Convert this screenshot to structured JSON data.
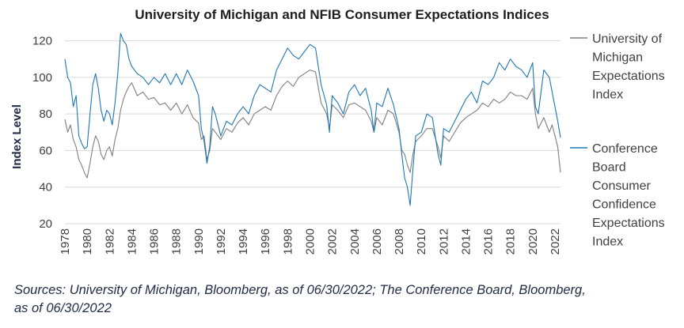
{
  "chart_data": {
    "type": "line",
    "title": "University of Michigan and NFIB Consumer  Expectations  Indices",
    "xlabel": "",
    "ylabel": "Index Level",
    "xlim": [
      1978,
      2022.5
    ],
    "ylim": [
      20,
      125
    ],
    "yticks": [
      20,
      40,
      60,
      80,
      100,
      120
    ],
    "xticks": [
      "1978",
      "1980",
      "1982",
      "1984",
      "1986",
      "1988",
      "1990",
      "1992",
      "1994",
      "1996",
      "1998",
      "2000",
      "2002",
      "2004",
      "2006",
      "2008",
      "2010",
      "2012",
      "2014",
      "2016",
      "2018",
      "2020",
      "2022"
    ],
    "legend_position": "right",
    "series": [
      {
        "name": "University of Michigan Expectations Index",
        "legend_lines": [
          "University of",
          "Michigan",
          "Expectations",
          "Index"
        ],
        "color": "#7f7f7f",
        "x": [
          1978.0,
          1978.25,
          1978.5,
          1978.75,
          1979.0,
          1979.25,
          1979.5,
          1979.75,
          1980.0,
          1980.25,
          1980.5,
          1980.75,
          1981.0,
          1981.25,
          1981.5,
          1981.75,
          1982.0,
          1982.25,
          1982.5,
          1982.75,
          1983.0,
          1983.25,
          1983.5,
          1983.75,
          1984.0,
          1984.5,
          1985.0,
          1985.5,
          1986.0,
          1986.5,
          1987.0,
          1987.5,
          1988.0,
          1988.5,
          1989.0,
          1989.5,
          1990.0,
          1990.25,
          1990.5,
          1990.75,
          1991.0,
          1991.25,
          1991.5,
          1992.0,
          1992.5,
          1993.0,
          1993.5,
          1994.0,
          1994.5,
          1995.0,
          1995.5,
          1996.0,
          1996.5,
          1997.0,
          1997.5,
          1998.0,
          1998.5,
          1999.0,
          1999.5,
          2000.0,
          2000.5,
          2001.0,
          2001.5,
          2001.75,
          2002.0,
          2002.5,
          2003.0,
          2003.5,
          2004.0,
          2004.5,
          2005.0,
          2005.5,
          2005.75,
          2006.0,
          2006.5,
          2007.0,
          2007.5,
          2008.0,
          2008.25,
          2008.5,
          2008.75,
          2009.0,
          2009.25,
          2009.5,
          2010.0,
          2010.5,
          2011.0,
          2011.5,
          2011.75,
          2012.0,
          2012.5,
          2013.0,
          2013.5,
          2014.0,
          2014.5,
          2015.0,
          2015.5,
          2016.0,
          2016.5,
          2017.0,
          2017.5,
          2018.0,
          2018.5,
          2019.0,
          2019.5,
          2020.0,
          2020.25,
          2020.5,
          2021.0,
          2021.5,
          2021.75,
          2022.0,
          2022.25,
          2022.5
        ],
        "values": [
          77,
          70,
          74,
          66,
          62,
          55,
          52,
          48,
          45,
          53,
          62,
          68,
          65,
          58,
          55,
          60,
          62,
          57,
          66,
          72,
          82,
          88,
          92,
          95,
          97,
          90,
          92,
          88,
          89,
          85,
          86,
          82,
          86,
          80,
          85,
          78,
          75,
          66,
          68,
          55,
          60,
          72,
          70,
          66,
          72,
          70,
          75,
          78,
          74,
          80,
          82,
          84,
          82,
          90,
          95,
          98,
          95,
          100,
          102,
          104,
          103,
          86,
          80,
          72,
          85,
          82,
          78,
          85,
          86,
          84,
          82,
          76,
          70,
          78,
          74,
          82,
          80,
          70,
          60,
          58,
          52,
          48,
          58,
          65,
          68,
          72,
          72,
          62,
          56,
          68,
          65,
          70,
          75,
          78,
          80,
          82,
          86,
          84,
          88,
          86,
          88,
          92,
          90,
          90,
          88,
          94,
          80,
          72,
          78,
          70,
          74,
          68,
          62,
          48
        ]
      },
      {
        "name": "Conference Board Consumer Confidence Expectations Index",
        "legend_lines": [
          "Conference",
          "Board",
          "Consumer",
          "Confidence",
          "Expectations",
          "Index"
        ],
        "color": "#1f77b4",
        "x": [
          1978.0,
          1978.25,
          1978.5,
          1978.75,
          1979.0,
          1979.25,
          1979.5,
          1979.75,
          1980.0,
          1980.25,
          1980.5,
          1980.75,
          1981.0,
          1981.25,
          1981.5,
          1981.75,
          1982.0,
          1982.25,
          1982.5,
          1982.75,
          1983.0,
          1983.25,
          1983.5,
          1983.75,
          1984.0,
          1984.5,
          1985.0,
          1985.5,
          1986.0,
          1986.5,
          1987.0,
          1987.5,
          1988.0,
          1988.5,
          1989.0,
          1989.5,
          1990.0,
          1990.25,
          1990.5,
          1990.75,
          1991.0,
          1991.25,
          1991.5,
          1992.0,
          1992.5,
          1993.0,
          1993.5,
          1994.0,
          1994.5,
          1995.0,
          1995.5,
          1996.0,
          1996.5,
          1997.0,
          1997.5,
          1998.0,
          1998.5,
          1999.0,
          1999.5,
          2000.0,
          2000.5,
          2001.0,
          2001.5,
          2001.75,
          2002.0,
          2002.5,
          2003.0,
          2003.5,
          2004.0,
          2004.5,
          2005.0,
          2005.5,
          2005.75,
          2006.0,
          2006.5,
          2007.0,
          2007.5,
          2008.0,
          2008.25,
          2008.5,
          2008.75,
          2009.0,
          2009.25,
          2009.5,
          2010.0,
          2010.5,
          2011.0,
          2011.5,
          2011.75,
          2012.0,
          2012.5,
          2013.0,
          2013.5,
          2014.0,
          2014.5,
          2015.0,
          2015.5,
          2016.0,
          2016.5,
          2017.0,
          2017.5,
          2018.0,
          2018.5,
          2019.0,
          2019.5,
          2020.0,
          2020.25,
          2020.5,
          2021.0,
          2021.5,
          2021.75,
          2022.0,
          2022.25,
          2022.5
        ],
        "values": [
          110,
          100,
          97,
          84,
          90,
          68,
          64,
          61,
          62,
          80,
          96,
          102,
          94,
          82,
          76,
          82,
          80,
          74,
          86,
          102,
          124,
          120,
          118,
          110,
          106,
          102,
          100,
          96,
          100,
          97,
          102,
          96,
          102,
          96,
          104,
          98,
          90,
          72,
          65,
          53,
          62,
          84,
          80,
          68,
          76,
          74,
          80,
          84,
          80,
          90,
          96,
          94,
          92,
          104,
          110,
          116,
          112,
          110,
          114,
          118,
          116,
          96,
          85,
          70,
          90,
          86,
          80,
          92,
          96,
          90,
          94,
          82,
          70,
          86,
          84,
          94,
          85,
          72,
          58,
          45,
          40,
          30,
          50,
          68,
          70,
          80,
          78,
          58,
          52,
          72,
          70,
          76,
          82,
          88,
          92,
          86,
          98,
          96,
          100,
          108,
          104,
          110,
          106,
          104,
          100,
          108,
          84,
          80,
          104,
          100,
          92,
          84,
          76,
          67
        ]
      }
    ]
  },
  "source_lines": [
    "Sources: University of Michigan, Bloomberg, as of 06/30/2022; The Conference Board, Bloomberg,",
    "as of 06/30/2022"
  ]
}
